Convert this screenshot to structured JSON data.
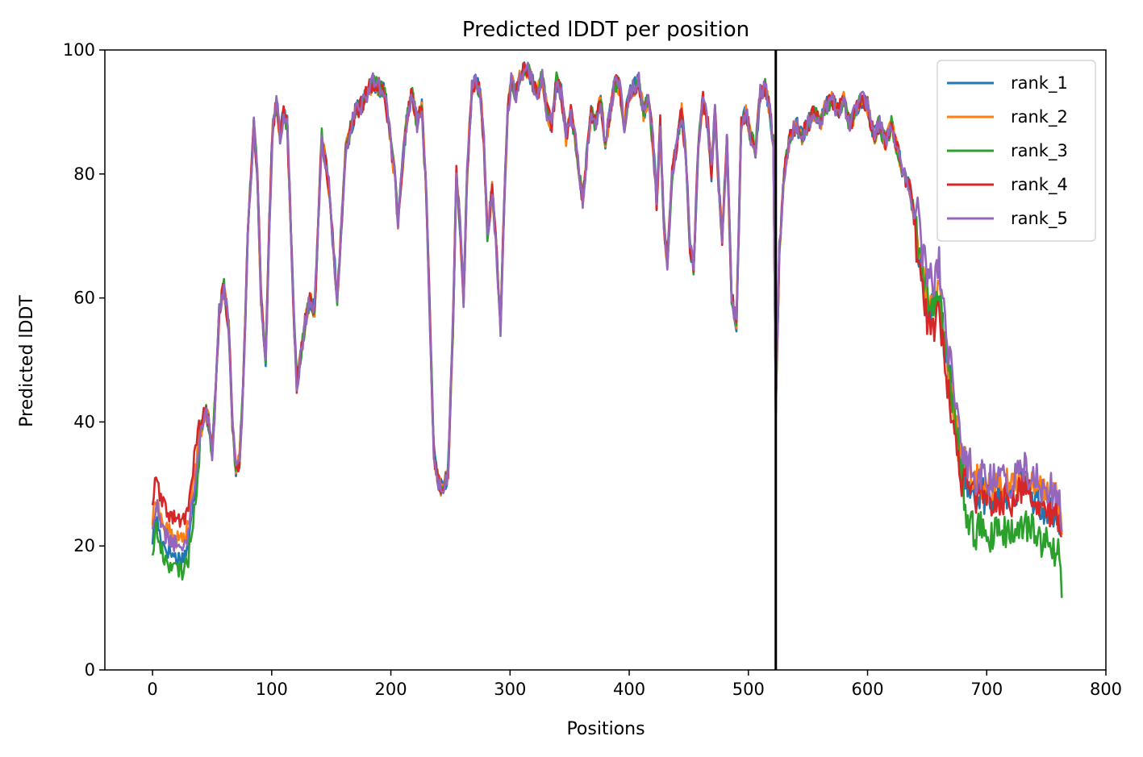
{
  "chart_data": {
    "type": "line",
    "title": "Predicted lDDT per position",
    "xlabel": "Positions",
    "ylabel": "Predicted lDDT",
    "xlim": [
      -40,
      800
    ],
    "ylim": [
      0,
      100
    ],
    "xticks": [
      0,
      100,
      200,
      300,
      400,
      500,
      600,
      700,
      800
    ],
    "yticks": [
      0,
      20,
      40,
      60,
      80,
      100
    ],
    "grid": false,
    "legend_position": "top-right",
    "vline": {
      "x": 523,
      "color": "#000000"
    },
    "base_profile": {
      "x": [
        0,
        3,
        6,
        10,
        15,
        20,
        25,
        30,
        35,
        40,
        44,
        47,
        50,
        53,
        56,
        60,
        64,
        67,
        70,
        73,
        76,
        80,
        85,
        88,
        91,
        95,
        98,
        101,
        104,
        107,
        110,
        113,
        116,
        119,
        121,
        124,
        128,
        132,
        136,
        139,
        142,
        145,
        148,
        151,
        155,
        158,
        162,
        166,
        170,
        175,
        180,
        185,
        190,
        195,
        200,
        203,
        206,
        210,
        214,
        218,
        222,
        226,
        230,
        233,
        236,
        240,
        244,
        248,
        252,
        255,
        258,
        261,
        264,
        268,
        272,
        275,
        278,
        281,
        285,
        289,
        292,
        295,
        298,
        301,
        305,
        309,
        313,
        317,
        320,
        323,
        327,
        331,
        335,
        339,
        343,
        347,
        351,
        355,
        358,
        361,
        364,
        368,
        372,
        376,
        380,
        384,
        388,
        392,
        396,
        400,
        404,
        408,
        412,
        416,
        420,
        423,
        426,
        429,
        432,
        436,
        440,
        444,
        448,
        451,
        454,
        458,
        462,
        466,
        469,
        472,
        475,
        478,
        482,
        486,
        490,
        494,
        498,
        502,
        506,
        510,
        514,
        518,
        521,
        523,
        526,
        530,
        535,
        540,
        545,
        550,
        555,
        560,
        565,
        570,
        575,
        580,
        585,
        590,
        595,
        600,
        605,
        610,
        615,
        620,
        625,
        630,
        635,
        640,
        645,
        650,
        655,
        660,
        663,
        666,
        670,
        674,
        678,
        682,
        686,
        690,
        695,
        700,
        705,
        710,
        715,
        720,
        725,
        730,
        735,
        740,
        745,
        750,
        755,
        760,
        763
      ],
      "y": [
        23,
        27,
        24,
        22,
        21,
        20,
        20,
        22,
        30,
        38,
        42,
        40,
        35,
        45,
        58,
        62,
        55,
        40,
        32,
        34,
        45,
        70,
        88,
        80,
        60,
        50,
        72,
        88,
        92,
        86,
        90,
        88,
        72,
        55,
        46,
        50,
        56,
        60,
        58,
        72,
        86,
        82,
        78,
        70,
        60,
        70,
        84,
        87,
        90,
        91,
        93,
        95,
        94,
        93,
        85,
        80,
        72,
        82,
        90,
        93,
        88,
        91,
        75,
        55,
        35,
        30,
        29,
        32,
        55,
        80,
        72,
        60,
        80,
        94,
        95,
        93,
        85,
        70,
        78,
        66,
        55,
        75,
        90,
        95,
        93,
        96,
        97,
        96,
        94,
        93,
        96,
        90,
        88,
        95,
        93,
        86,
        90,
        85,
        80,
        76,
        82,
        90,
        88,
        92,
        85,
        90,
        95,
        94,
        88,
        93,
        94,
        95,
        90,
        92,
        85,
        75,
        88,
        72,
        66,
        80,
        85,
        90,
        82,
        68,
        65,
        85,
        92,
        88,
        80,
        90,
        78,
        70,
        85,
        60,
        56,
        88,
        90,
        86,
        84,
        93,
        94,
        90,
        85,
        42,
        68,
        80,
        86,
        88,
        86,
        88,
        90,
        88,
        91,
        92,
        90,
        92,
        88,
        90,
        92,
        91,
        86,
        88,
        85,
        88,
        84,
        80,
        78,
        72,
        65,
        60,
        58,
        62,
        55,
        50,
        45,
        40,
        33,
        31,
        30,
        28,
        29,
        27,
        28,
        28,
        28,
        27,
        29,
        30,
        29,
        28,
        27,
        26,
        26,
        25,
        20
      ]
    },
    "series": [
      {
        "name": "rank_1",
        "color": "#1f77b4"
      },
      {
        "name": "rank_2",
        "color": "#ff7f0e"
      },
      {
        "name": "rank_3",
        "color": "#2ca02c"
      },
      {
        "name": "rank_4",
        "color": "#d62728"
      },
      {
        "name": "rank_5",
        "color": "#9467bd"
      }
    ]
  }
}
